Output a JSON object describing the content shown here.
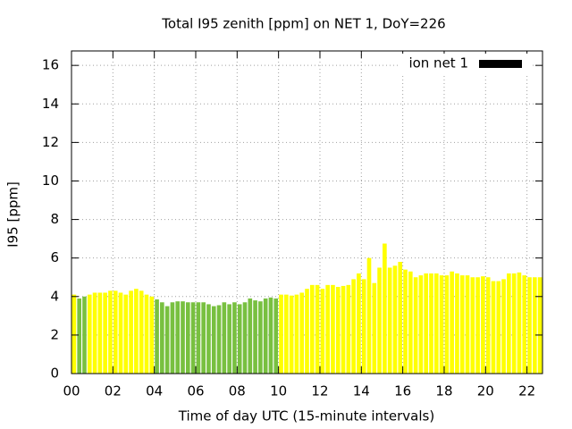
{
  "chart_data": {
    "type": "bar",
    "title": "Total I95 zenith [ppm] on NET 1, DoY=226",
    "x_label": "Time of day UTC (15-minute intervals)",
    "y_label": "I95 [ppm]",
    "x": [
      0,
      0.25,
      0.5,
      0.75,
      1,
      1.25,
      1.5,
      1.75,
      2,
      2.25,
      2.5,
      2.75,
      3,
      3.25,
      3.5,
      3.75,
      4,
      4.25,
      4.5,
      4.75,
      5,
      5.25,
      5.5,
      5.75,
      6,
      6.25,
      6.5,
      6.75,
      7,
      7.25,
      7.5,
      7.75,
      8,
      8.25,
      8.5,
      8.75,
      9,
      9.25,
      9.5,
      9.75,
      10,
      10.25,
      10.5,
      10.75,
      11,
      11.25,
      11.5,
      11.75,
      12,
      12.25,
      12.5,
      12.75,
      13,
      13.25,
      13.5,
      13.75,
      14,
      14.25,
      14.5,
      14.75,
      15,
      15.25,
      15.5,
      15.75,
      16,
      16.25,
      16.5,
      16.75,
      17,
      17.25,
      17.5,
      17.75,
      18,
      18.25,
      18.5,
      18.75,
      19,
      19.25,
      19.5,
      19.75,
      20,
      20.25,
      20.5,
      20.75,
      21,
      21.25,
      21.5,
      21.75,
      22,
      22.25,
      22.5
    ],
    "bar_width": 0.25,
    "series": [
      {
        "name": "ion net 1",
        "color": "#000000",
        "values": [
          4.1,
          3.9,
          4.0,
          4.1,
          4.2,
          4.2,
          4.2,
          4.3,
          4.3,
          4.2,
          4.1,
          4.3,
          4.4,
          4.3,
          4.1,
          4.0,
          3.85,
          3.7,
          3.5,
          3.7,
          3.75,
          3.75,
          3.7,
          3.7,
          3.7,
          3.7,
          3.6,
          3.5,
          3.55,
          3.7,
          3.6,
          3.7,
          3.6,
          3.7,
          3.9,
          3.8,
          3.75,
          3.9,
          3.95,
          3.9,
          4.1,
          4.1,
          4.05,
          4.1,
          4.2,
          4.4,
          4.6,
          4.6,
          4.4,
          4.6,
          4.6,
          4.5,
          4.55,
          4.6,
          4.9,
          5.2,
          4.9,
          6.0,
          4.7,
          5.5,
          6.75,
          5.5,
          5.6,
          5.8,
          5.4,
          5.3,
          5.0,
          5.1,
          5.2,
          5.2,
          5.2,
          5.1,
          5.1,
          5.3,
          5.2,
          5.1,
          5.1,
          5.0,
          5.0,
          5.05,
          5.0,
          4.8,
          4.8,
          4.9,
          5.2,
          5.2,
          5.25,
          5.1,
          5.0,
          5.0,
          5.0
        ],
        "bar_colors": [
          "#ffff00",
          "#78c040",
          "#78c040",
          "#ffff00",
          "#ffff00",
          "#ffff00",
          "#ffff00",
          "#ffff00",
          "#ffff00",
          "#ffff00",
          "#ffff00",
          "#ffff00",
          "#ffff00",
          "#ffff00",
          "#ffff00",
          "#ffff00",
          "#78c040",
          "#78c040",
          "#78c040",
          "#78c040",
          "#78c040",
          "#78c040",
          "#78c040",
          "#78c040",
          "#78c040",
          "#78c040",
          "#78c040",
          "#78c040",
          "#78c040",
          "#78c040",
          "#78c040",
          "#78c040",
          "#78c040",
          "#78c040",
          "#78c040",
          "#78c040",
          "#78c040",
          "#78c040",
          "#78c040",
          "#78c040",
          "#ffff00",
          "#ffff00",
          "#ffff00",
          "#ffff00",
          "#ffff00",
          "#ffff00",
          "#ffff00",
          "#ffff00",
          "#ffff00",
          "#ffff00",
          "#ffff00",
          "#ffff00",
          "#ffff00",
          "#ffff00",
          "#ffff00",
          "#ffff00",
          "#ffff00",
          "#ffff00",
          "#ffff00",
          "#ffff00",
          "#ffff00",
          "#ffff00",
          "#ffff00",
          "#ffff00",
          "#ffff00",
          "#ffff00",
          "#ffff00",
          "#ffff00",
          "#ffff00",
          "#ffff00",
          "#ffff00",
          "#ffff00",
          "#ffff00",
          "#ffff00",
          "#ffff00",
          "#ffff00",
          "#ffff00",
          "#ffff00",
          "#ffff00",
          "#ffff00",
          "#ffff00",
          "#ffff00",
          "#ffff00",
          "#ffff00",
          "#ffff00",
          "#ffff00",
          "#ffff00",
          "#ffff00",
          "#ffff00",
          "#ffff00",
          "#ffff00"
        ]
      }
    ],
    "xlim": [
      0,
      22.75
    ],
    "xticks": [
      {
        "value": 0,
        "label": "00"
      },
      {
        "value": 2,
        "label": "02"
      },
      {
        "value": 4,
        "label": "04"
      },
      {
        "value": 6,
        "label": "06"
      },
      {
        "value": 8,
        "label": "08"
      },
      {
        "value": 10,
        "label": "10"
      },
      {
        "value": 12,
        "label": "12"
      },
      {
        "value": 14,
        "label": "14"
      },
      {
        "value": 16,
        "label": "16"
      },
      {
        "value": 18,
        "label": "18"
      },
      {
        "value": 20,
        "label": "20"
      },
      {
        "value": 22,
        "label": "22"
      }
    ],
    "ylim": [
      0,
      16.75
    ],
    "yticks": [
      0,
      2,
      4,
      6,
      8,
      10,
      12,
      14,
      16
    ],
    "grid": true,
    "legend": "top-right"
  }
}
